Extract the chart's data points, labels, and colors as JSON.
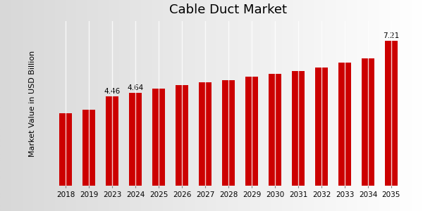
{
  "title": "Cable Duct Market",
  "ylabel": "Market Value in USD Billion",
  "categories": [
    "2018",
    "2019",
    "2023",
    "2024",
    "2025",
    "2026",
    "2027",
    "2028",
    "2029",
    "2030",
    "2031",
    "2032",
    "2033",
    "2034",
    "2035"
  ],
  "values": [
    3.6,
    3.8,
    4.46,
    4.64,
    4.82,
    5.0,
    5.15,
    5.25,
    5.42,
    5.58,
    5.72,
    5.9,
    6.12,
    6.35,
    7.21
  ],
  "bar_color": "#cc0000",
  "background_top": "#d8d8d8",
  "background_bottom": "#ffffff",
  "grid_color": "#ffffff",
  "annotations": {
    "2023": "4.46",
    "2024": "4.64",
    "2035": "7.21"
  },
  "title_fontsize": 13,
  "ylabel_fontsize": 8,
  "tick_fontsize": 7.5,
  "annotation_fontsize": 7.5,
  "ylim": [
    0,
    8.2
  ],
  "bottom_bar_color": "#cc0000",
  "bottom_bar_height": 0.022
}
